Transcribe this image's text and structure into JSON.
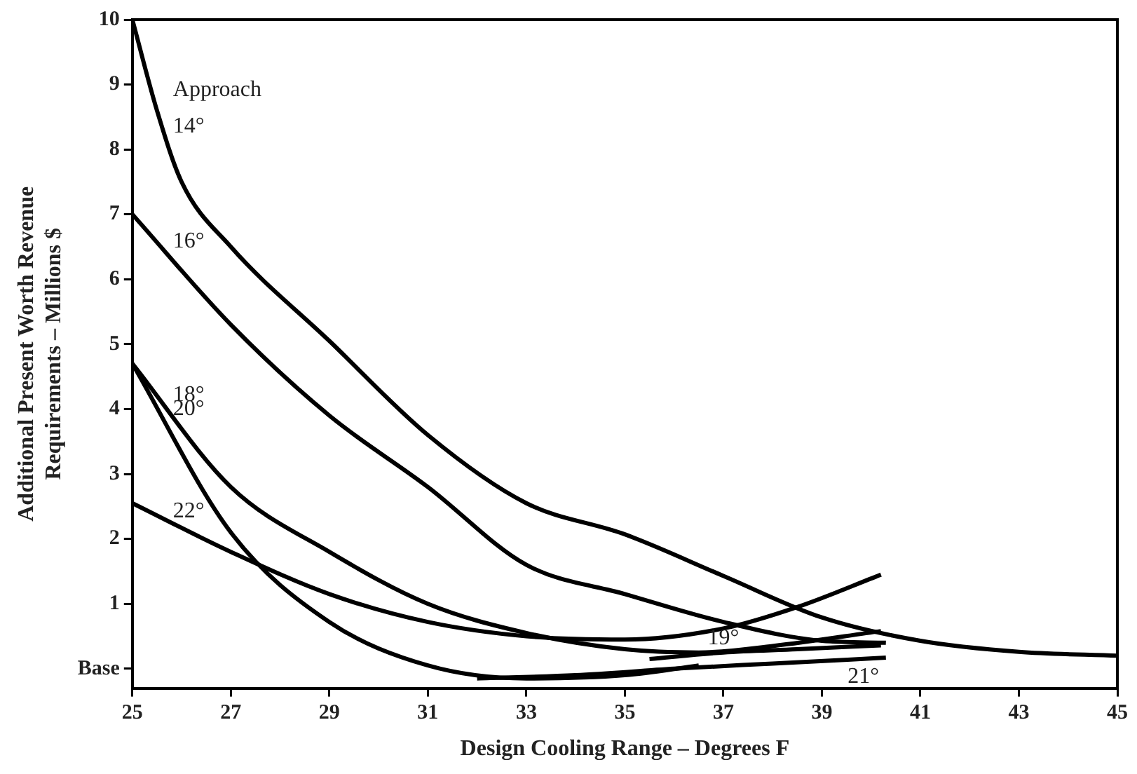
{
  "chart_data": {
    "type": "line",
    "xlabel": "Design Cooling Range – Degrees F",
    "ylabel": "Additional Present Worth Revenue\nRequirements – Millions $",
    "annotations": [
      "Approach"
    ],
    "xlim": [
      25,
      45
    ],
    "xticks": [
      25,
      27,
      29,
      31,
      33,
      35,
      37,
      39,
      41,
      43,
      45
    ],
    "ylim": [
      -0.3,
      10
    ],
    "yticks": [
      {
        "value": 0,
        "label": "Base"
      },
      1,
      2,
      3,
      4,
      5,
      6,
      7,
      8,
      9,
      10
    ],
    "grid": false,
    "legend": false,
    "marker": "none",
    "line_style": "solid",
    "series": [
      {
        "name": "14°",
        "color": "#000000",
        "x": [
          25,
          25.5,
          26,
          27,
          29,
          31,
          33,
          35,
          37,
          39,
          41,
          43,
          45
        ],
        "values": [
          10,
          8.6,
          7.5,
          6.5,
          5.05,
          3.6,
          2.55,
          2.07,
          1.43,
          0.79,
          0.43,
          0.26,
          0.2
        ]
      },
      {
        "name": "16°",
        "color": "#000000",
        "x": [
          25,
          27,
          29,
          31,
          33,
          35,
          37,
          39,
          40.3
        ],
        "values": [
          7,
          5.3,
          3.9,
          2.8,
          1.6,
          1.15,
          0.72,
          0.43,
          0.4
        ]
      },
      {
        "name": "18°",
        "color": "#000000",
        "x": [
          25,
          27,
          29,
          31,
          33,
          35,
          36.5,
          38,
          40.2
        ],
        "values": [
          4.7,
          2.8,
          1.8,
          1,
          0.55,
          0.3,
          0.25,
          0.35,
          0.58
        ]
      },
      {
        "name": "20°",
        "color": "#000000",
        "x": [
          25,
          27,
          29,
          31,
          33,
          35,
          36.5
        ],
        "values": [
          4.7,
          2.1,
          0.72,
          0.05,
          -0.15,
          -0.1,
          0.05
        ]
      },
      {
        "name": "22°",
        "color": "#000000",
        "x": [
          25,
          27,
          29,
          31,
          33,
          35,
          37,
          38.5,
          40.2
        ],
        "values": [
          2.55,
          1.8,
          1.15,
          0.72,
          0.5,
          0.45,
          0.62,
          0.95,
          1.45
        ]
      },
      {
        "name": "19°",
        "color": "#000000",
        "x": [
          35.5,
          37,
          38.5,
          40.2
        ],
        "values": [
          0.15,
          0.25,
          0.3,
          0.36
        ]
      },
      {
        "name": "21°",
        "color": "#000000",
        "x": [
          32,
          34,
          36,
          38,
          40.3
        ],
        "values": [
          -0.15,
          -0.1,
          0,
          0.08,
          0.17
        ]
      }
    ]
  }
}
